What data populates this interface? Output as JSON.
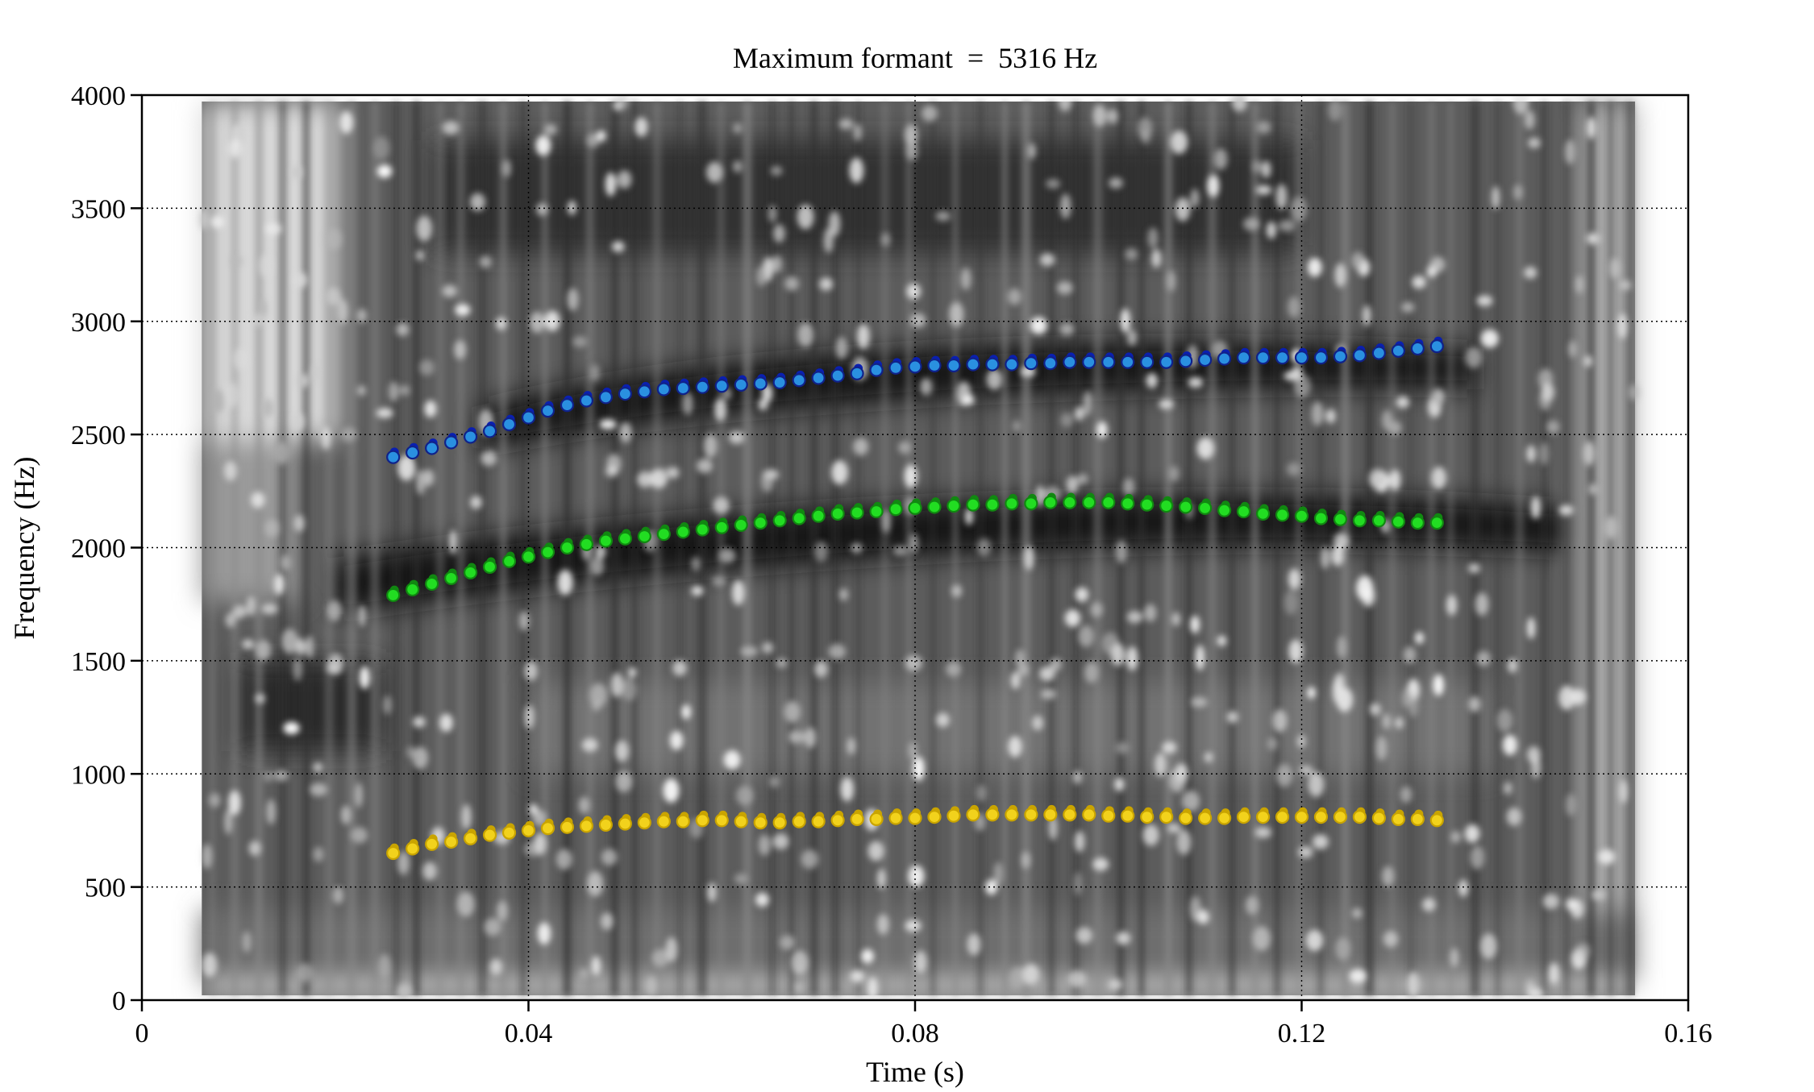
{
  "chart_data": {
    "type": "scatter",
    "title": "Maximum formant  =  5316 Hz",
    "xlabel": "Time (s)",
    "ylabel": "Frequency (Hz)",
    "xlim": [
      0,
      0.16
    ],
    "ylim": [
      0,
      4000
    ],
    "xticks": [
      0,
      0.04,
      0.08,
      0.12,
      0.16
    ],
    "xtick_labels": [
      "0",
      "0.04",
      "0.08",
      "0.12",
      "0.16"
    ],
    "yticks": [
      0,
      500,
      1000,
      1500,
      2000,
      2500,
      3000,
      3500,
      4000
    ],
    "ytick_labels": [
      "0",
      "500",
      "1000",
      "1500",
      "2000",
      "2500",
      "3000",
      "3500",
      "4000"
    ],
    "grid": true,
    "background": "grayscale spectrogram",
    "colors": {
      "f1_fill": "#f2d21c",
      "f1_edge": "#c9a400",
      "f2_fill": "#22dd22",
      "f2_edge": "#118811",
      "f3_fill": "#2a90e0",
      "f3_edge": "#10228a",
      "f3_dot": "#0a1fb0"
    },
    "series": [
      {
        "x": [
          0.026,
          0.028,
          0.03,
          0.032,
          0.034,
          0.036,
          0.038,
          0.04,
          0.042,
          0.044,
          0.046,
          0.048,
          0.05,
          0.052,
          0.054,
          0.056,
          0.058,
          0.06,
          0.062,
          0.064,
          0.066,
          0.068,
          0.07,
          0.072,
          0.074,
          0.076,
          0.078,
          0.08,
          0.082,
          0.084,
          0.086,
          0.088,
          0.09,
          0.092,
          0.094,
          0.096,
          0.098,
          0.1,
          0.102,
          0.104,
          0.106,
          0.108,
          0.11,
          0.112,
          0.114,
          0.116,
          0.118,
          0.12,
          0.122,
          0.124,
          0.126,
          0.128,
          0.13,
          0.132,
          0.134
        ],
        "values": [
          650,
          670,
          690,
          700,
          715,
          730,
          740,
          750,
          760,
          765,
          770,
          775,
          780,
          785,
          790,
          790,
          795,
          795,
          790,
          785,
          785,
          790,
          790,
          795,
          800,
          800,
          805,
          805,
          810,
          815,
          820,
          820,
          820,
          820,
          820,
          820,
          820,
          815,
          815,
          810,
          810,
          805,
          805,
          805,
          810,
          810,
          810,
          810,
          810,
          810,
          810,
          805,
          800,
          800,
          795
        ]
      },
      {
        "x": [
          0.026,
          0.028,
          0.03,
          0.032,
          0.034,
          0.036,
          0.038,
          0.04,
          0.042,
          0.044,
          0.046,
          0.048,
          0.05,
          0.052,
          0.054,
          0.056,
          0.058,
          0.06,
          0.062,
          0.064,
          0.066,
          0.068,
          0.07,
          0.072,
          0.074,
          0.076,
          0.078,
          0.08,
          0.082,
          0.084,
          0.086,
          0.088,
          0.09,
          0.092,
          0.094,
          0.096,
          0.098,
          0.1,
          0.102,
          0.104,
          0.106,
          0.108,
          0.11,
          0.112,
          0.114,
          0.116,
          0.118,
          0.12,
          0.122,
          0.124,
          0.126,
          0.128,
          0.13,
          0.132,
          0.134
        ],
        "values": [
          1790,
          1815,
          1840,
          1865,
          1890,
          1915,
          1940,
          1960,
          1980,
          2000,
          2015,
          2030,
          2040,
          2050,
          2060,
          2070,
          2080,
          2090,
          2100,
          2110,
          2120,
          2130,
          2140,
          2150,
          2155,
          2160,
          2170,
          2175,
          2180,
          2185,
          2190,
          2190,
          2195,
          2195,
          2200,
          2200,
          2200,
          2200,
          2195,
          2190,
          2185,
          2180,
          2175,
          2165,
          2160,
          2150,
          2145,
          2140,
          2130,
          2125,
          2120,
          2120,
          2115,
          2110,
          2110
        ]
      },
      {
        "x": [
          0.026,
          0.028,
          0.03,
          0.032,
          0.034,
          0.036,
          0.038,
          0.04,
          0.042,
          0.044,
          0.046,
          0.048,
          0.05,
          0.052,
          0.054,
          0.056,
          0.058,
          0.06,
          0.062,
          0.064,
          0.066,
          0.068,
          0.07,
          0.072,
          0.074,
          0.076,
          0.078,
          0.08,
          0.082,
          0.084,
          0.086,
          0.088,
          0.09,
          0.092,
          0.094,
          0.096,
          0.098,
          0.1,
          0.102,
          0.104,
          0.106,
          0.108,
          0.11,
          0.112,
          0.114,
          0.116,
          0.118,
          0.12,
          0.122,
          0.124,
          0.126,
          0.128,
          0.13,
          0.132,
          0.134
        ],
        "values": [
          2400,
          2420,
          2440,
          2465,
          2490,
          2515,
          2545,
          2575,
          2605,
          2630,
          2650,
          2665,
          2680,
          2690,
          2700,
          2705,
          2710,
          2715,
          2720,
          2725,
          2730,
          2740,
          2750,
          2760,
          2770,
          2785,
          2795,
          2800,
          2805,
          2805,
          2810,
          2810,
          2810,
          2815,
          2815,
          2820,
          2820,
          2820,
          2820,
          2820,
          2820,
          2825,
          2830,
          2835,
          2840,
          2840,
          2840,
          2840,
          2840,
          2845,
          2850,
          2860,
          2870,
          2880,
          2890
        ]
      }
    ]
  }
}
